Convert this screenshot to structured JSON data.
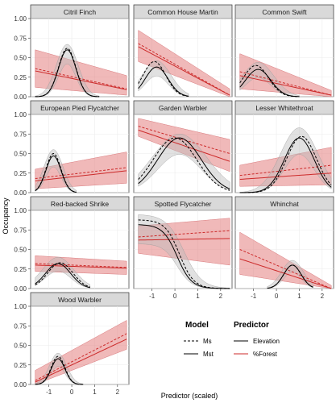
{
  "chart_data": {
    "type": "line",
    "layout": "faceted small multiples with ribbons (confidence bands)",
    "xlabel": "Predictor (scaled)",
    "ylabel": "Occupancy",
    "xlim": [
      -1.8,
      2.5
    ],
    "ylim": [
      0,
      1
    ],
    "x_ticks": [
      -1,
      0,
      1,
      2
    ],
    "y_ticks": [
      0.0,
      0.25,
      0.5,
      0.75,
      1.0
    ],
    "y_tick_labels": [
      "0.00",
      "0.25",
      "0.50",
      "0.75",
      "1.00"
    ],
    "grid": true,
    "legend": {
      "placement": "bottom-right",
      "model_title": "Model",
      "model_entries": [
        {
          "label": "Ms",
          "dash": "dashed"
        },
        {
          "label": "Mst",
          "dash": "solid"
        }
      ],
      "predictor_title": "Predictor",
      "predictor_entries": [
        {
          "label": "Elevation",
          "color": "#000000"
        },
        {
          "label": "%Forest",
          "color": "#cc2a2a"
        }
      ]
    },
    "colors": {
      "elevation_line": "#000000",
      "elevation_band": "#bdbdbd",
      "forest_line": "#cc2a2a",
      "forest_band": "#e38080",
      "panel_bg": "#ffffff",
      "strip_bg": "#d9d9d9",
      "grid": "#ececec"
    },
    "panels": [
      {
        "title": "Citril Finch",
        "elevation": {
          "x_range": [
            -1.6,
            1.2
          ],
          "type": "bell",
          "peak": 0.6,
          "center": -0.2,
          "width": 0.38,
          "ms_peak": 0.62,
          "ms_center": -0.2,
          "band_peak": 0.67
        },
        "forest": {
          "x_range": [
            -1.6,
            2.4
          ],
          "ms_y": [
            0.36,
            0.1
          ],
          "mst_y": [
            0.33,
            0.09
          ],
          "band_lower": [
            0.12,
            0.02
          ],
          "band_upper": [
            0.6,
            0.27
          ]
        }
      },
      {
        "title": "Common House Martin",
        "elevation": {
          "x_range": [
            -1.6,
            0.6
          ],
          "type": "bell",
          "peak": 0.38,
          "center": -0.8,
          "width": 0.5,
          "ms_peak": 0.45,
          "ms_center": -0.9,
          "band_peak": 0.46
        },
        "forest": {
          "x_range": [
            -1.6,
            2.4
          ],
          "ms_y": [
            0.68,
            0.02
          ],
          "mst_y": [
            0.64,
            0.02
          ],
          "band_lower": [
            0.45,
            0.0
          ],
          "band_upper": [
            0.85,
            0.1
          ]
        }
      },
      {
        "title": "Common Swift",
        "elevation": {
          "x_range": [
            -1.6,
            1.0
          ],
          "type": "bell",
          "peak": 0.35,
          "center": -0.8,
          "width": 0.55,
          "ms_peak": 0.4,
          "ms_center": -0.9,
          "band_peak": 0.44
        },
        "forest": {
          "x_range": [
            -1.6,
            2.4
          ],
          "ms_y": [
            0.32,
            0.02
          ],
          "mst_y": [
            0.27,
            0.02
          ],
          "band_lower": [
            0.1,
            0.0
          ],
          "band_upper": [
            0.55,
            0.08
          ]
        }
      },
      {
        "title": "European Pied Flycatcher",
        "elevation": {
          "x_range": [
            -1.6,
            0.2
          ],
          "type": "bell",
          "peak": 0.47,
          "center": -0.8,
          "width": 0.33,
          "ms_peak": 0.5,
          "ms_center": -0.8,
          "band_peak": 0.55
        },
        "forest": {
          "x_range": [
            -1.6,
            2.4
          ],
          "ms_y": [
            0.18,
            0.32
          ],
          "mst_y": [
            0.15,
            0.28
          ],
          "band_lower": [
            0.05,
            0.12
          ],
          "band_upper": [
            0.3,
            0.52
          ]
        }
      },
      {
        "title": "Garden Warbler",
        "elevation": {
          "x_range": [
            -1.6,
            2.4
          ],
          "type": "bell",
          "peak": 0.7,
          "center": 0.2,
          "width": 0.95,
          "ms_peak": 0.7,
          "ms_center": 0.0,
          "band_peak": 0.75
        },
        "forest": {
          "x_range": [
            -1.6,
            2.4
          ],
          "ms_y": [
            0.85,
            0.5
          ],
          "mst_y": [
            0.8,
            0.4
          ],
          "band_lower": [
            0.72,
            0.27
          ],
          "band_upper": [
            0.95,
            0.68
          ]
        }
      },
      {
        "title": "Lesser Whitethroat",
        "elevation": {
          "x_range": [
            -1.6,
            2.4
          ],
          "type": "bell",
          "peak": 0.7,
          "center": 1.0,
          "width": 0.65,
          "ms_peak": 0.72,
          "ms_center": 1.1,
          "band_peak": 0.83
        },
        "forest": {
          "x_range": [
            -1.6,
            2.4
          ],
          "ms_y": [
            0.22,
            0.35
          ],
          "mst_y": [
            0.17,
            0.25
          ],
          "band_lower": [
            0.08,
            0.1
          ],
          "band_upper": [
            0.35,
            0.58
          ]
        }
      },
      {
        "title": "Red-backed Shrike",
        "elevation": {
          "x_range": [
            -1.6,
            0.8
          ],
          "type": "bell",
          "peak": 0.32,
          "center": -0.6,
          "width": 0.55,
          "ms_peak": 0.33,
          "ms_center": -0.5,
          "band_peak": 0.4
        },
        "forest": {
          "x_range": [
            -1.6,
            2.4
          ],
          "ms_y": [
            0.32,
            0.27
          ],
          "mst_y": [
            0.3,
            0.26
          ],
          "band_lower": [
            0.22,
            0.18
          ],
          "band_upper": [
            0.42,
            0.35
          ]
        }
      },
      {
        "title": "Spotted Flycatcher",
        "elevation": {
          "x_range": [
            -1.6,
            2.4
          ],
          "type": "sigmoid_down",
          "start": 0.82,
          "mid": 0.1,
          "slope": 1.6,
          "ms_start": 0.88,
          "ms_mid": 0.2,
          "band_start": 0.95
        },
        "forest": {
          "x_range": [
            -1.6,
            2.4
          ],
          "ms_y": [
            0.66,
            0.74
          ],
          "mst_y": [
            0.62,
            0.64
          ],
          "band_lower": [
            0.45,
            0.3
          ],
          "band_upper": [
            0.8,
            0.9
          ]
        }
      },
      {
        "title": "Whinchat",
        "elevation": {
          "x_range": [
            -0.4,
            1.6
          ],
          "type": "bell",
          "peak": 0.3,
          "center": 0.7,
          "width": 0.38,
          "ms_peak": 0.3,
          "ms_center": 0.7,
          "band_peak": 0.36
        },
        "forest": {
          "x_range": [
            -1.6,
            2.4
          ],
          "ms_y": [
            0.5,
            0.0
          ],
          "mst_y": [
            0.38,
            0.0
          ],
          "band_lower": [
            0.18,
            0.0
          ],
          "band_upper": [
            0.72,
            0.04
          ]
        }
      },
      {
        "title": "Wood Warbler",
        "elevation": {
          "x_range": [
            -1.6,
            0.5
          ],
          "type": "bell",
          "peak": 0.33,
          "center": -0.6,
          "width": 0.3,
          "ms_peak": 0.36,
          "ms_center": -0.6,
          "band_peak": 0.4
        },
        "forest": {
          "x_range": [
            -1.6,
            2.4
          ],
          "ms_y": [
            0.05,
            0.65
          ],
          "mst_y": [
            0.03,
            0.58
          ],
          "band_lower": [
            0.0,
            0.45
          ],
          "band_upper": [
            0.18,
            0.82
          ]
        }
      }
    ]
  }
}
